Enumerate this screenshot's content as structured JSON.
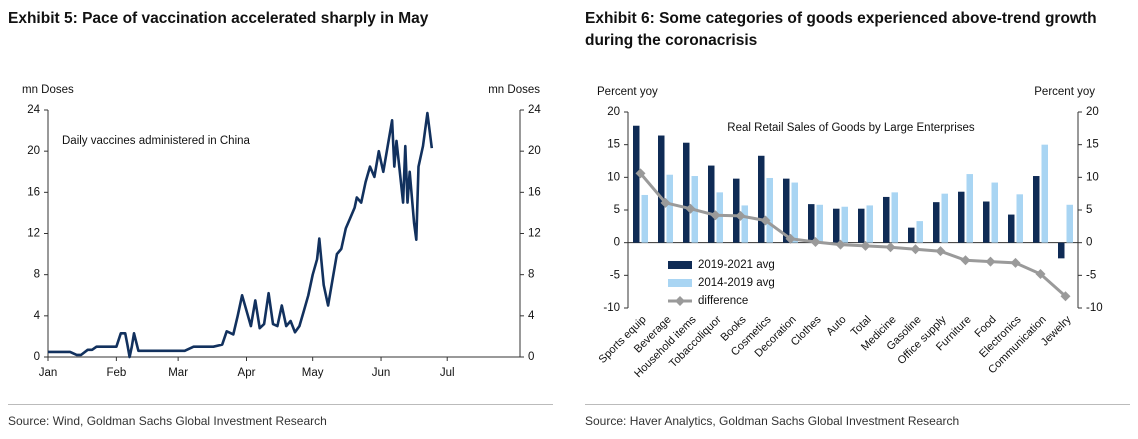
{
  "chart_data": [
    {
      "type": "line",
      "title": "Exhibit 5: Pace of vaccination accelerated sharply in May",
      "y_label": "mn Doses",
      "y2_label": "mn Doses",
      "annotation": "Daily vaccines administered in China",
      "color": "#12315e",
      "x": [
        0,
        5,
        10,
        13,
        15,
        18,
        20,
        22,
        25,
        28,
        31,
        33,
        35,
        36,
        37,
        38,
        39,
        41,
        45,
        50,
        55,
        59,
        62,
        66,
        70,
        75,
        79,
        81,
        82,
        84,
        86,
        88,
        90,
        92,
        94,
        96,
        98,
        100,
        102,
        104,
        106,
        108,
        110,
        112,
        114,
        116,
        118,
        120,
        122,
        123,
        125,
        127,
        129,
        131,
        133,
        135,
        137,
        139,
        140,
        142,
        144,
        146,
        148,
        150,
        151,
        152,
        154,
        156,
        157,
        158,
        160,
        161,
        162,
        163,
        164,
        166,
        167,
        168,
        170,
        172,
        174
      ],
      "values": [
        0.5,
        0.5,
        0.5,
        0.2,
        0.2,
        0.7,
        0.7,
        1.0,
        1.0,
        1.0,
        1.0,
        2.3,
        2.3,
        1.2,
        0.0,
        1.0,
        2.3,
        0.6,
        0.6,
        0.6,
        0.6,
        0.6,
        0.6,
        1.0,
        1.0,
        1.0,
        1.2,
        2.5,
        2.4,
        2.2,
        4.0,
        6.0,
        4.5,
        3.0,
        5.5,
        2.8,
        3.2,
        6.2,
        3.2,
        3.0,
        5.0,
        3.0,
        3.5,
        2.4,
        3.0,
        4.5,
        6.0,
        8.0,
        9.5,
        11.5,
        7.0,
        5.0,
        7.5,
        10.0,
        10.5,
        12.5,
        13.5,
        14.5,
        15.5,
        15.0,
        17.0,
        18.5,
        17.5,
        20.0,
        19.0,
        18.0,
        20.5,
        23.0,
        18.5,
        21.0,
        17.0,
        15.0,
        20.5,
        15.0,
        18.0,
        13.0,
        11.4,
        18.5,
        20.5,
        23.7,
        20.3
      ],
      "xlim": [
        0,
        214
      ],
      "xticks": [
        {
          "value": 0,
          "label": "Jan"
        },
        {
          "value": 31,
          "label": "Feb"
        },
        {
          "value": 59,
          "label": "Mar"
        },
        {
          "value": 90,
          "label": "Apr"
        },
        {
          "value": 120,
          "label": "May"
        },
        {
          "value": 151,
          "label": "Jun"
        },
        {
          "value": 181,
          "label": "Jul"
        }
      ],
      "ylim": [
        0,
        24
      ],
      "yticks": [
        0,
        4,
        8,
        12,
        16,
        20,
        24
      ],
      "y2lim": [
        0,
        24
      ],
      "y2ticks": [
        0,
        4,
        8,
        12,
        16,
        20,
        24
      ],
      "source": "Source: Wind, Goldman Sachs Global Investment Research"
    },
    {
      "type": "bar",
      "title": "Exhibit 6: Some categories of goods experienced above-trend growth during the coronacrisis",
      "y_label": "Percent yoy",
      "y2_label": "Percent yoy",
      "annotation": "Real Retail Sales of Goods by Large Enterprises",
      "categories": [
        "Sports equip",
        "Beverage",
        "Household items",
        "Tobaccoliquor",
        "Books",
        "Cosmetics",
        "Decoration",
        "Clothes",
        "Auto",
        "Total",
        "Medicine",
        "Gasoline",
        "Office supply",
        "Furniture",
        "Food",
        "Electronics",
        "Communication",
        "Jewelry"
      ],
      "series": [
        {
          "name": "2019-2021 avg",
          "color": "#0f2b55",
          "values": [
            17.9,
            16.4,
            15.3,
            11.8,
            9.8,
            13.3,
            9.8,
            5.9,
            5.2,
            5.2,
            7.0,
            2.3,
            6.2,
            7.8,
            6.3,
            4.3,
            10.2,
            -2.4
          ]
        },
        {
          "name": "2014-2019 avg",
          "color": "#a9d5f3",
          "values": [
            7.3,
            10.4,
            10.2,
            7.7,
            5.7,
            9.9,
            9.2,
            5.8,
            5.5,
            5.7,
            7.7,
            3.3,
            7.5,
            10.5,
            9.2,
            7.4,
            15.0,
            5.8
          ]
        },
        {
          "name": "difference",
          "type": "line",
          "color": "#9a9a9a",
          "values": [
            10.6,
            6.1,
            5.2,
            4.2,
            4.1,
            3.4,
            0.6,
            0.1,
            -0.3,
            -0.5,
            -0.7,
            -1.0,
            -1.3,
            -2.7,
            -2.9,
            -3.1,
            -4.8,
            -8.2
          ]
        }
      ],
      "legend": "lower left",
      "ylim": [
        -10,
        20
      ],
      "yticks": [
        -10,
        -5,
        0,
        5,
        10,
        15,
        20
      ],
      "y2lim": [
        -10,
        20
      ],
      "y2ticks": [
        -10,
        -5,
        0,
        5,
        10,
        15,
        20
      ],
      "source": "Source: Haver Analytics, Goldman Sachs Global Investment Research"
    }
  ]
}
